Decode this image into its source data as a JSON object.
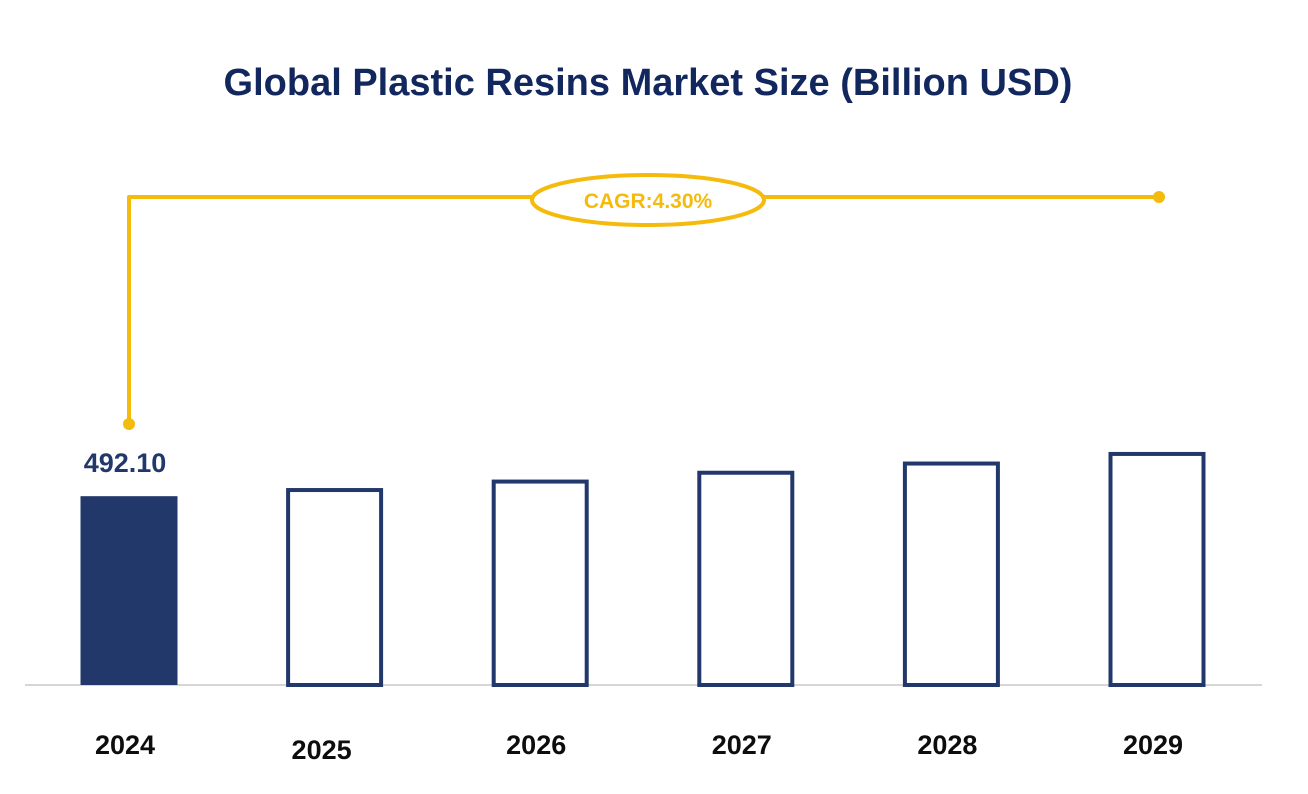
{
  "colors": {
    "title": "#12275e",
    "bar_filled": "#22376a",
    "bar_outline": "#22376a",
    "accent": "#f5bb0c",
    "axis": "#d6d6d6",
    "tick_label": "#0d0d0d",
    "value_label": "#22376a"
  },
  "chart_data": {
    "type": "bar",
    "title": "Global Plastic Resins Market Size (Billion USD)",
    "categories": [
      "2024",
      "2025",
      "2026",
      "2027",
      "2028",
      "2029"
    ],
    "values": [
      492.1,
      513.3,
      535.4,
      558.4,
      582.4,
      607.4
    ],
    "value_labels": [
      "492.10",
      "",
      "",
      "",
      "",
      ""
    ],
    "filled": [
      true,
      false,
      false,
      false,
      false,
      false
    ],
    "cagr_label": "CAGR:4.30%",
    "xlabel": "",
    "ylabel": "",
    "grid": false,
    "legend": "none"
  }
}
